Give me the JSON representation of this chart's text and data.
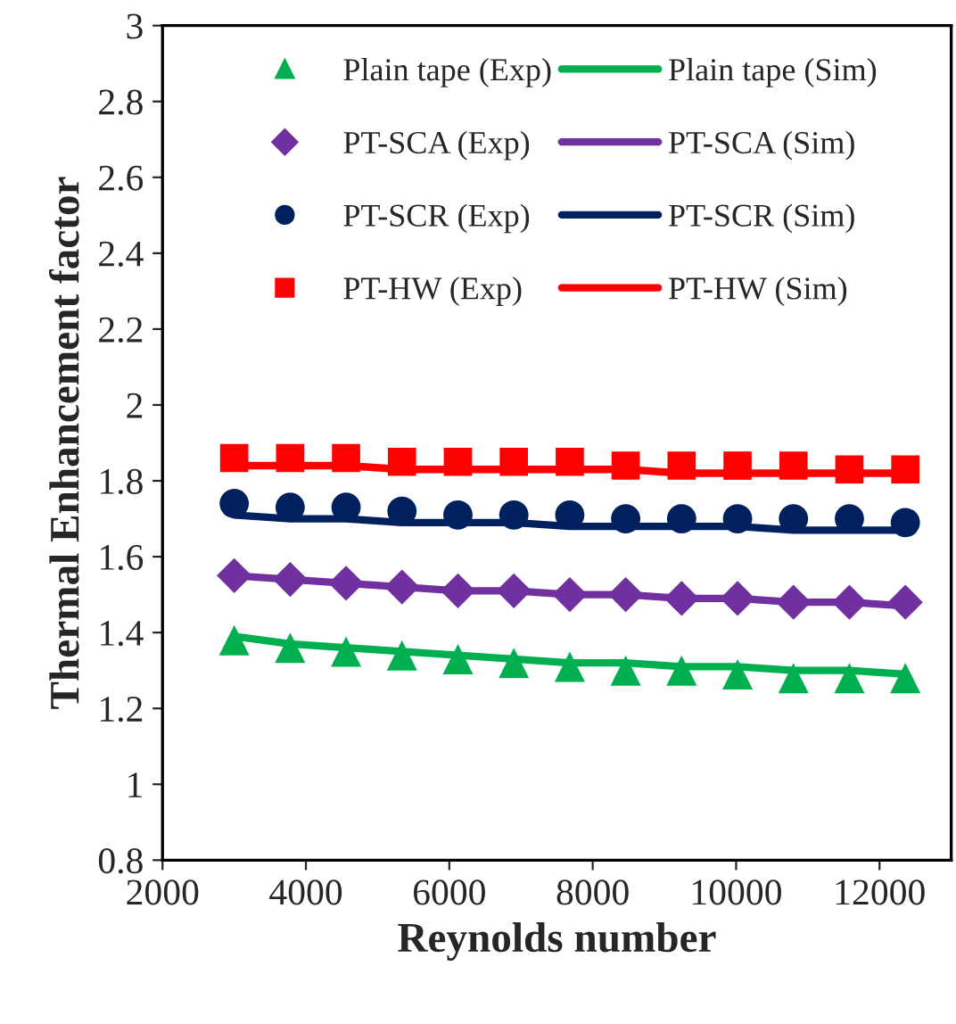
{
  "chart_data": {
    "type": "scatter",
    "xlabel": "Reynolds number",
    "ylabel": "Thermal Enhancement factor",
    "x": [
      3000,
      3780,
      4560,
      5340,
      6120,
      6900,
      7680,
      8460,
      9240,
      10020,
      10800,
      11580,
      12360
    ],
    "xlim": [
      2000,
      13000
    ],
    "xticks": [
      2000,
      4000,
      6000,
      8000,
      10000,
      12000
    ],
    "ylim": [
      0.8,
      3
    ],
    "yticks": [
      0.8,
      1,
      1.2,
      1.4,
      1.6,
      1.8,
      2,
      2.2,
      2.4,
      2.6,
      2.8,
      3
    ],
    "grid": false,
    "legend": "top",
    "series": [
      {
        "name": "Plain tape (Exp)",
        "marker": "triangle",
        "color": "#00b050",
        "values": [
          1.38,
          1.36,
          1.35,
          1.34,
          1.33,
          1.32,
          1.31,
          1.3,
          1.3,
          1.29,
          1.28,
          1.28,
          1.28
        ]
      },
      {
        "name": "PT-SCA (Exp)",
        "marker": "diamond",
        "color": "#7030a0",
        "values": [
          1.55,
          1.54,
          1.53,
          1.52,
          1.51,
          1.51,
          1.5,
          1.5,
          1.49,
          1.49,
          1.48,
          1.48,
          1.48
        ]
      },
      {
        "name": "PT-SCR (Exp)",
        "marker": "circle",
        "color": "#002060",
        "values": [
          1.74,
          1.73,
          1.73,
          1.72,
          1.71,
          1.71,
          1.71,
          1.7,
          1.7,
          1.7,
          1.7,
          1.7,
          1.69
        ]
      },
      {
        "name": "PT-HW (Exp)",
        "marker": "square",
        "color": "#ff0000",
        "values": [
          1.86,
          1.86,
          1.86,
          1.85,
          1.85,
          1.85,
          1.85,
          1.84,
          1.84,
          1.84,
          1.84,
          1.83,
          1.83
        ]
      },
      {
        "name": "Plain tape (Sim)",
        "type": "line",
        "marker": "none",
        "line_style": "solid",
        "color": "#00b050",
        "values": [
          1.39,
          1.37,
          1.36,
          1.35,
          1.34,
          1.33,
          1.32,
          1.32,
          1.31,
          1.31,
          1.3,
          1.3,
          1.29
        ]
      },
      {
        "name": "PT-SCA (Sim)",
        "type": "line",
        "marker": "none",
        "line_style": "solid",
        "color": "#7030a0",
        "values": [
          1.55,
          1.54,
          1.53,
          1.52,
          1.51,
          1.51,
          1.5,
          1.5,
          1.49,
          1.49,
          1.48,
          1.48,
          1.47
        ]
      },
      {
        "name": "PT-SCR (Sim)",
        "type": "line",
        "marker": "none",
        "line_style": "solid",
        "color": "#002060",
        "values": [
          1.71,
          1.7,
          1.7,
          1.69,
          1.69,
          1.69,
          1.68,
          1.68,
          1.68,
          1.68,
          1.67,
          1.67,
          1.67
        ]
      },
      {
        "name": "PT-HW (Sim)",
        "type": "line",
        "marker": "none",
        "line_style": "solid",
        "color": "#ff0000",
        "values": [
          1.84,
          1.84,
          1.84,
          1.83,
          1.83,
          1.83,
          1.83,
          1.83,
          1.82,
          1.82,
          1.82,
          1.82,
          1.82
        ]
      }
    ]
  }
}
